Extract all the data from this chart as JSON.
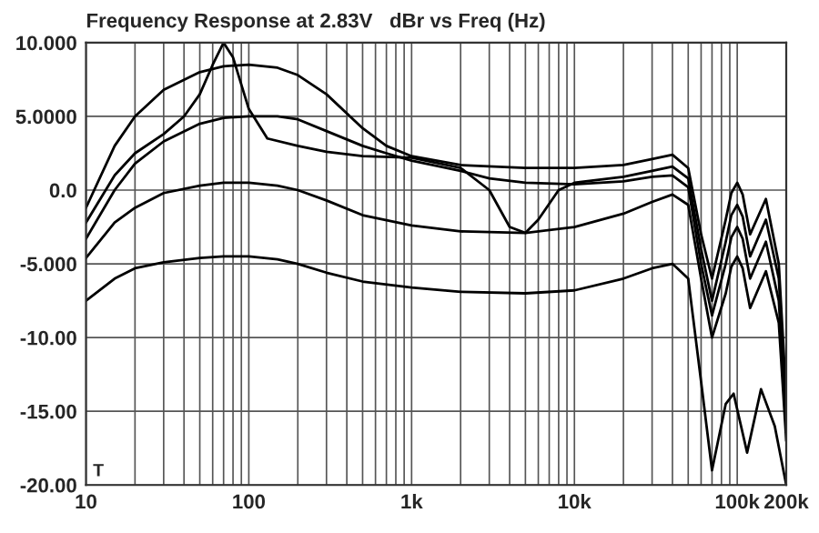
{
  "chart_data": {
    "type": "line",
    "title": "Frequency Response at 2.83V   dBr vs Freq (Hz)",
    "log": "x",
    "grid": true,
    "marker": "none",
    "line_style": "solid",
    "xlim": [
      10,
      200000
    ],
    "xticks": [
      10,
      100,
      {
        "value": 1000,
        "label": "1k"
      },
      {
        "value": 10000,
        "label": "10k"
      },
      {
        "value": 100000,
        "label": "100k"
      },
      {
        "value": 200000,
        "label": "200k"
      }
    ],
    "ylim": [
      -20,
      10
    ],
    "yticks": [
      {
        "value": 10,
        "label": "10.000"
      },
      {
        "value": 5,
        "label": "5.0000"
      },
      {
        "value": 0,
        "label": "0.0"
      },
      {
        "value": -5,
        "label": "-5.000"
      },
      {
        "value": -10,
        "label": "-10.00"
      },
      {
        "value": -15,
        "label": "-15.00"
      },
      {
        "value": -20,
        "label": "-20.00"
      }
    ],
    "annotations": [
      "T"
    ],
    "series": [
      {
        "color": "#000000",
        "x": [
          10,
          15,
          20,
          30,
          50,
          70,
          100,
          150,
          200,
          300,
          500,
          700,
          1000,
          2000,
          5000,
          10000,
          20000,
          30000,
          40000,
          50000,
          60000,
          70000,
          85000,
          92000,
          100000,
          108000,
          120000,
          150000,
          180000,
          200000
        ],
        "values": [
          -1.2,
          3,
          5,
          6.8,
          8,
          8.4,
          8.5,
          8.3,
          7.8,
          6.5,
          4.2,
          3.0,
          2.3,
          1.7,
          1.5,
          1.5,
          1.7,
          2.1,
          2.4,
          1.5,
          -3,
          -6,
          -2,
          -0.2,
          0.5,
          -0.3,
          -3,
          -0.6,
          -5,
          -14
        ]
      },
      {
        "color": "#000000",
        "x": [
          10,
          15,
          20,
          30,
          40,
          50,
          60,
          70,
          80,
          100,
          130,
          200,
          300,
          500,
          1000,
          2000,
          3000,
          4000,
          5000,
          6000,
          8000,
          10000,
          20000,
          30000,
          40000,
          50000,
          60000,
          70000,
          85000,
          92000,
          100000,
          108000,
          120000,
          150000,
          180000,
          200000
        ],
        "values": [
          -2.2,
          1,
          2.5,
          3.8,
          5,
          6.5,
          8.5,
          10,
          9,
          5.5,
          3.5,
          3.0,
          2.6,
          2.3,
          2.2,
          1.5,
          0,
          -2.5,
          -2.9,
          -2,
          0,
          0.5,
          0.9,
          1.3,
          1.6,
          0.8,
          -4,
          -7.5,
          -3.5,
          -1.7,
          -1,
          -1.8,
          -4.5,
          -2,
          -6,
          -15
        ]
      },
      {
        "color": "#000000",
        "x": [
          10,
          15,
          20,
          30,
          50,
          70,
          100,
          150,
          200,
          300,
          500,
          700,
          1000,
          2000,
          3000,
          5000,
          10000,
          20000,
          30000,
          40000,
          50000,
          60000,
          70000,
          85000,
          92000,
          100000,
          108000,
          120000,
          150000,
          180000,
          200000
        ],
        "values": [
          -3.3,
          0,
          1.8,
          3.3,
          4.5,
          4.9,
          5,
          5,
          4.8,
          4.0,
          3.0,
          2.5,
          2.0,
          1.3,
          0.8,
          0.5,
          0.4,
          0.6,
          0.9,
          1.0,
          0.2,
          -5,
          -8.5,
          -5,
          -3.2,
          -2.5,
          -3.3,
          -6,
          -3.5,
          -7.5,
          -16
        ]
      },
      {
        "color": "#000000",
        "x": [
          10,
          15,
          20,
          30,
          50,
          70,
          100,
          150,
          200,
          300,
          500,
          1000,
          2000,
          5000,
          10000,
          20000,
          30000,
          40000,
          50000,
          60000,
          70000,
          85000,
          92000,
          100000,
          108000,
          120000,
          150000,
          180000,
          200000
        ],
        "values": [
          -4.6,
          -2.2,
          -1.2,
          -0.2,
          0.3,
          0.5,
          0.5,
          0.3,
          0,
          -0.7,
          -1.7,
          -2.4,
          -2.8,
          -2.9,
          -2.5,
          -1.6,
          -0.8,
          -0.3,
          -1,
          -6,
          -10,
          -7,
          -5.2,
          -4.5,
          -5.3,
          -8,
          -5.5,
          -9,
          -17
        ]
      },
      {
        "color": "#000000",
        "x": [
          10,
          15,
          20,
          30,
          50,
          70,
          100,
          150,
          200,
          300,
          500,
          1000,
          2000,
          5000,
          10000,
          20000,
          30000,
          40000,
          50000,
          60000,
          70000,
          85000,
          95000,
          115000,
          140000,
          170000,
          200000
        ],
        "values": [
          -7.5,
          -6,
          -5.3,
          -4.9,
          -4.6,
          -4.5,
          -4.5,
          -4.7,
          -5,
          -5.6,
          -6.2,
          -6.6,
          -6.9,
          -7,
          -6.8,
          -6,
          -5.3,
          -5,
          -6,
          -13,
          -19,
          -14.5,
          -13.8,
          -17.8,
          -13.5,
          -16,
          -20
        ]
      }
    ]
  }
}
